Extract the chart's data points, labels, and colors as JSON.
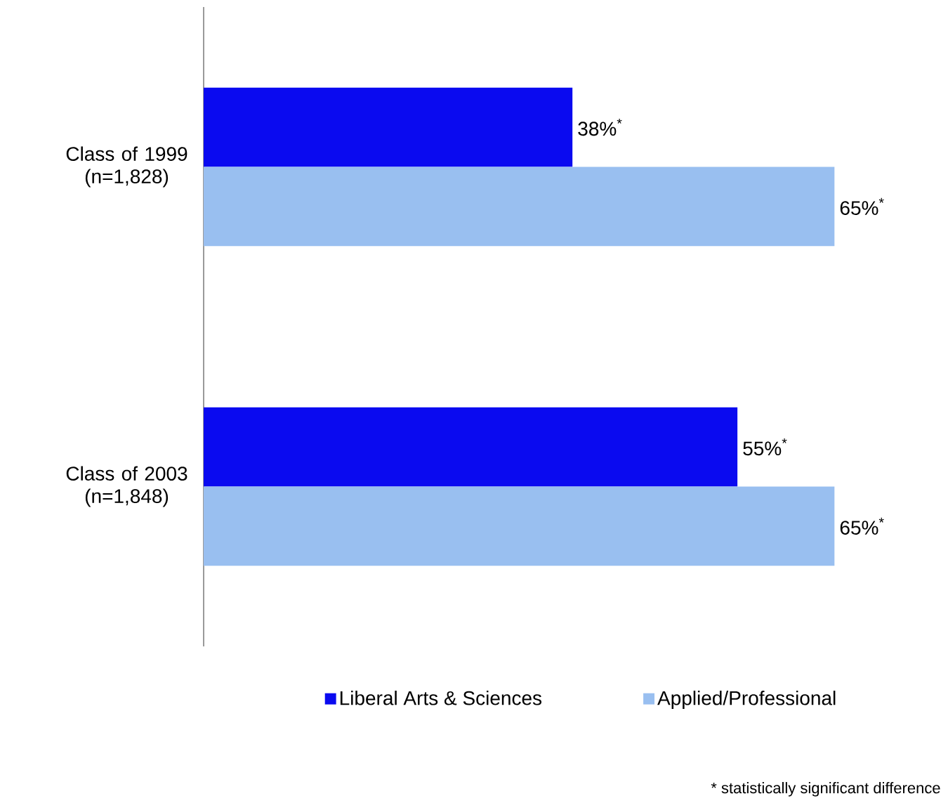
{
  "chart_data": {
    "type": "bar",
    "orientation": "horizontal",
    "categories": [
      "Class of 1999 (n=1,828)",
      "Class of 2003 (n=1,848)"
    ],
    "series": [
      {
        "name": "Liberal Arts & Sciences",
        "color": "#0a0af0",
        "values": [
          38,
          55
        ],
        "value_labels": [
          "38%$^{*}$",
          "55%$^{*}$"
        ]
      },
      {
        "name": "Applied/Professional",
        "color": "#99bff0",
        "values": [
          65,
          65
        ],
        "value_labels": [
          "65%$^{*}$",
          "65%$^{*}$"
        ]
      }
    ],
    "legend": "bottom",
    "annotations": [
      "* statistically significant difference"
    ]
  }
}
